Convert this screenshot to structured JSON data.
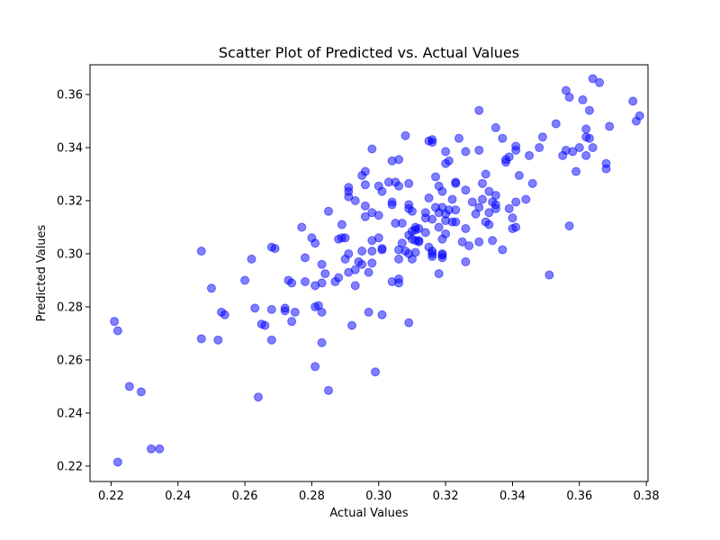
{
  "chart_data": {
    "type": "scatter",
    "title": "Scatter Plot of Predicted vs. Actual Values",
    "xlabel": "Actual Values",
    "ylabel": "Predicted Values",
    "xlim": [
      0.2137,
      0.3805
    ],
    "ylim": [
      0.2142,
      0.3712
    ],
    "xticks": [
      0.22,
      0.24,
      0.26,
      0.28,
      0.3,
      0.32,
      0.34,
      0.36,
      0.38
    ],
    "xtick_labels": [
      "0.22",
      "0.24",
      "0.26",
      "0.28",
      "0.30",
      "0.32",
      "0.34",
      "0.36",
      "0.38"
    ],
    "yticks": [
      0.22,
      0.24,
      0.26,
      0.28,
      0.3,
      0.32,
      0.34,
      0.36
    ],
    "ytick_labels": [
      "0.22",
      "0.24",
      "0.26",
      "0.28",
      "0.30",
      "0.32",
      "0.34",
      "0.36"
    ],
    "grid": false,
    "marker_color": "#0000ff",
    "marker_alpha": 0.5,
    "points": [
      [
        0.221,
        0.2745
      ],
      [
        0.222,
        0.271
      ],
      [
        0.222,
        0.2215
      ],
      [
        0.2255,
        0.25
      ],
      [
        0.229,
        0.248
      ],
      [
        0.232,
        0.2265
      ],
      [
        0.2345,
        0.2265
      ],
      [
        0.247,
        0.301
      ],
      [
        0.247,
        0.268
      ],
      [
        0.25,
        0.287
      ],
      [
        0.252,
        0.2675
      ],
      [
        0.253,
        0.278
      ],
      [
        0.254,
        0.277
      ],
      [
        0.26,
        0.29
      ],
      [
        0.262,
        0.298
      ],
      [
        0.263,
        0.2795
      ],
      [
        0.264,
        0.246
      ],
      [
        0.265,
        0.2735
      ],
      [
        0.266,
        0.273
      ],
      [
        0.268,
        0.3025
      ],
      [
        0.268,
        0.2675
      ],
      [
        0.268,
        0.279
      ],
      [
        0.269,
        0.302
      ],
      [
        0.272,
        0.2795
      ],
      [
        0.272,
        0.2785
      ],
      [
        0.273,
        0.29
      ],
      [
        0.274,
        0.289
      ],
      [
        0.274,
        0.2745
      ],
      [
        0.275,
        0.278
      ],
      [
        0.277,
        0.31
      ],
      [
        0.278,
        0.2985
      ],
      [
        0.278,
        0.2895
      ],
      [
        0.28,
        0.306
      ],
      [
        0.281,
        0.304
      ],
      [
        0.281,
        0.288
      ],
      [
        0.281,
        0.2575
      ],
      [
        0.281,
        0.28
      ],
      [
        0.282,
        0.2805
      ],
      [
        0.283,
        0.296
      ],
      [
        0.283,
        0.289
      ],
      [
        0.283,
        0.278
      ],
      [
        0.283,
        0.2665
      ],
      [
        0.284,
        0.2925
      ],
      [
        0.285,
        0.316
      ],
      [
        0.285,
        0.2485
      ],
      [
        0.287,
        0.2895
      ],
      [
        0.288,
        0.3055
      ],
      [
        0.288,
        0.291
      ],
      [
        0.289,
        0.311
      ],
      [
        0.289,
        0.306
      ],
      [
        0.29,
        0.306
      ],
      [
        0.29,
        0.298
      ],
      [
        0.291,
        0.3
      ],
      [
        0.291,
        0.293
      ],
      [
        0.291,
        0.3215
      ],
      [
        0.291,
        0.3235
      ],
      [
        0.291,
        0.325
      ],
      [
        0.292,
        0.273
      ],
      [
        0.293,
        0.32
      ],
      [
        0.293,
        0.294
      ],
      [
        0.293,
        0.288
      ],
      [
        0.294,
        0.297
      ],
      [
        0.295,
        0.3295
      ],
      [
        0.295,
        0.301
      ],
      [
        0.295,
        0.296
      ],
      [
        0.296,
        0.331
      ],
      [
        0.296,
        0.326
      ],
      [
        0.296,
        0.318
      ],
      [
        0.296,
        0.314
      ],
      [
        0.297,
        0.278
      ],
      [
        0.297,
        0.293
      ],
      [
        0.298,
        0.3395
      ],
      [
        0.298,
        0.3155
      ],
      [
        0.298,
        0.305
      ],
      [
        0.298,
        0.2965
      ],
      [
        0.298,
        0.301
      ],
      [
        0.299,
        0.2555
      ],
      [
        0.3,
        0.3255
      ],
      [
        0.3,
        0.3145
      ],
      [
        0.3,
        0.306
      ],
      [
        0.301,
        0.3235
      ],
      [
        0.301,
        0.302
      ],
      [
        0.301,
        0.277
      ],
      [
        0.301,
        0.3015
      ],
      [
        0.303,
        0.327
      ],
      [
        0.304,
        0.335
      ],
      [
        0.304,
        0.3195
      ],
      [
        0.304,
        0.3185
      ],
      [
        0.304,
        0.2895
      ],
      [
        0.305,
        0.327
      ],
      [
        0.305,
        0.3115
      ],
      [
        0.306,
        0.3355
      ],
      [
        0.306,
        0.3255
      ],
      [
        0.306,
        0.3015
      ],
      [
        0.306,
        0.298
      ],
      [
        0.306,
        0.2905
      ],
      [
        0.306,
        0.289
      ],
      [
        0.307,
        0.304
      ],
      [
        0.307,
        0.3115
      ],
      [
        0.308,
        0.3445
      ],
      [
        0.308,
        0.301
      ],
      [
        0.309,
        0.3265
      ],
      [
        0.309,
        0.3185
      ],
      [
        0.309,
        0.317
      ],
      [
        0.309,
        0.307
      ],
      [
        0.309,
        0.3
      ],
      [
        0.309,
        0.274
      ],
      [
        0.31,
        0.316
      ],
      [
        0.31,
        0.3085
      ],
      [
        0.31,
        0.3055
      ],
      [
        0.31,
        0.298
      ],
      [
        0.311,
        0.31
      ],
      [
        0.311,
        0.309
      ],
      [
        0.311,
        0.305
      ],
      [
        0.311,
        0.3005
      ],
      [
        0.312,
        0.3095
      ],
      [
        0.312,
        0.305
      ],
      [
        0.312,
        0.3045
      ],
      [
        0.314,
        0.3155
      ],
      [
        0.314,
        0.3135
      ],
      [
        0.314,
        0.308
      ],
      [
        0.315,
        0.3425
      ],
      [
        0.315,
        0.321
      ],
      [
        0.315,
        0.3025
      ],
      [
        0.316,
        0.343
      ],
      [
        0.316,
        0.342
      ],
      [
        0.316,
        0.313
      ],
      [
        0.316,
        0.301
      ],
      [
        0.316,
        0.3
      ],
      [
        0.316,
        0.299
      ],
      [
        0.317,
        0.329
      ],
      [
        0.317,
        0.3175
      ],
      [
        0.318,
        0.3255
      ],
      [
        0.318,
        0.3155
      ],
      [
        0.318,
        0.31
      ],
      [
        0.318,
        0.2925
      ],
      [
        0.319,
        0.3235
      ],
      [
        0.319,
        0.3175
      ],
      [
        0.319,
        0.3055
      ],
      [
        0.319,
        0.3
      ],
      [
        0.319,
        0.2995
      ],
      [
        0.319,
        0.2985
      ],
      [
        0.32,
        0.3385
      ],
      [
        0.32,
        0.334
      ],
      [
        0.32,
        0.315
      ],
      [
        0.32,
        0.3125
      ],
      [
        0.32,
        0.3075
      ],
      [
        0.321,
        0.335
      ],
      [
        0.321,
        0.3165
      ],
      [
        0.322,
        0.3205
      ],
      [
        0.322,
        0.312
      ],
      [
        0.323,
        0.327
      ],
      [
        0.323,
        0.3265
      ],
      [
        0.323,
        0.3165
      ],
      [
        0.323,
        0.312
      ],
      [
        0.324,
        0.3435
      ],
      [
        0.325,
        0.3045
      ],
      [
        0.326,
        0.3385
      ],
      [
        0.326,
        0.324
      ],
      [
        0.326,
        0.3095
      ],
      [
        0.326,
        0.297
      ],
      [
        0.327,
        0.303
      ],
      [
        0.328,
        0.3195
      ],
      [
        0.329,
        0.315
      ],
      [
        0.33,
        0.354
      ],
      [
        0.33,
        0.339
      ],
      [
        0.33,
        0.3175
      ],
      [
        0.33,
        0.3045
      ],
      [
        0.331,
        0.3265
      ],
      [
        0.331,
        0.3205
      ],
      [
        0.332,
        0.33
      ],
      [
        0.332,
        0.312
      ],
      [
        0.333,
        0.3235
      ],
      [
        0.333,
        0.3155
      ],
      [
        0.333,
        0.311
      ],
      [
        0.334,
        0.3195
      ],
      [
        0.334,
        0.305
      ],
      [
        0.335,
        0.3475
      ],
      [
        0.335,
        0.322
      ],
      [
        0.335,
        0.3185
      ],
      [
        0.335,
        0.317
      ],
      [
        0.337,
        0.3435
      ],
      [
        0.337,
        0.3015
      ],
      [
        0.338,
        0.3355
      ],
      [
        0.338,
        0.3345
      ],
      [
        0.339,
        0.3365
      ],
      [
        0.339,
        0.317
      ],
      [
        0.34,
        0.3135
      ],
      [
        0.34,
        0.3095
      ],
      [
        0.341,
        0.3405
      ],
      [
        0.341,
        0.339
      ],
      [
        0.341,
        0.3195
      ],
      [
        0.341,
        0.31
      ],
      [
        0.342,
        0.3295
      ],
      [
        0.344,
        0.3205
      ],
      [
        0.345,
        0.337
      ],
      [
        0.346,
        0.3265
      ],
      [
        0.348,
        0.34
      ],
      [
        0.349,
        0.344
      ],
      [
        0.351,
        0.292
      ],
      [
        0.353,
        0.349
      ],
      [
        0.355,
        0.337
      ],
      [
        0.356,
        0.3615
      ],
      [
        0.356,
        0.339
      ],
      [
        0.357,
        0.359
      ],
      [
        0.357,
        0.3105
      ],
      [
        0.358,
        0.3385
      ],
      [
        0.359,
        0.331
      ],
      [
        0.36,
        0.34
      ],
      [
        0.361,
        0.358
      ],
      [
        0.362,
        0.347
      ],
      [
        0.362,
        0.344
      ],
      [
        0.362,
        0.337
      ],
      [
        0.363,
        0.354
      ],
      [
        0.363,
        0.3435
      ],
      [
        0.364,
        0.366
      ],
      [
        0.364,
        0.34
      ],
      [
        0.366,
        0.3645
      ],
      [
        0.368,
        0.334
      ],
      [
        0.368,
        0.332
      ],
      [
        0.369,
        0.348
      ],
      [
        0.376,
        0.3575
      ],
      [
        0.377,
        0.35
      ],
      [
        0.378,
        0.352
      ]
    ]
  }
}
